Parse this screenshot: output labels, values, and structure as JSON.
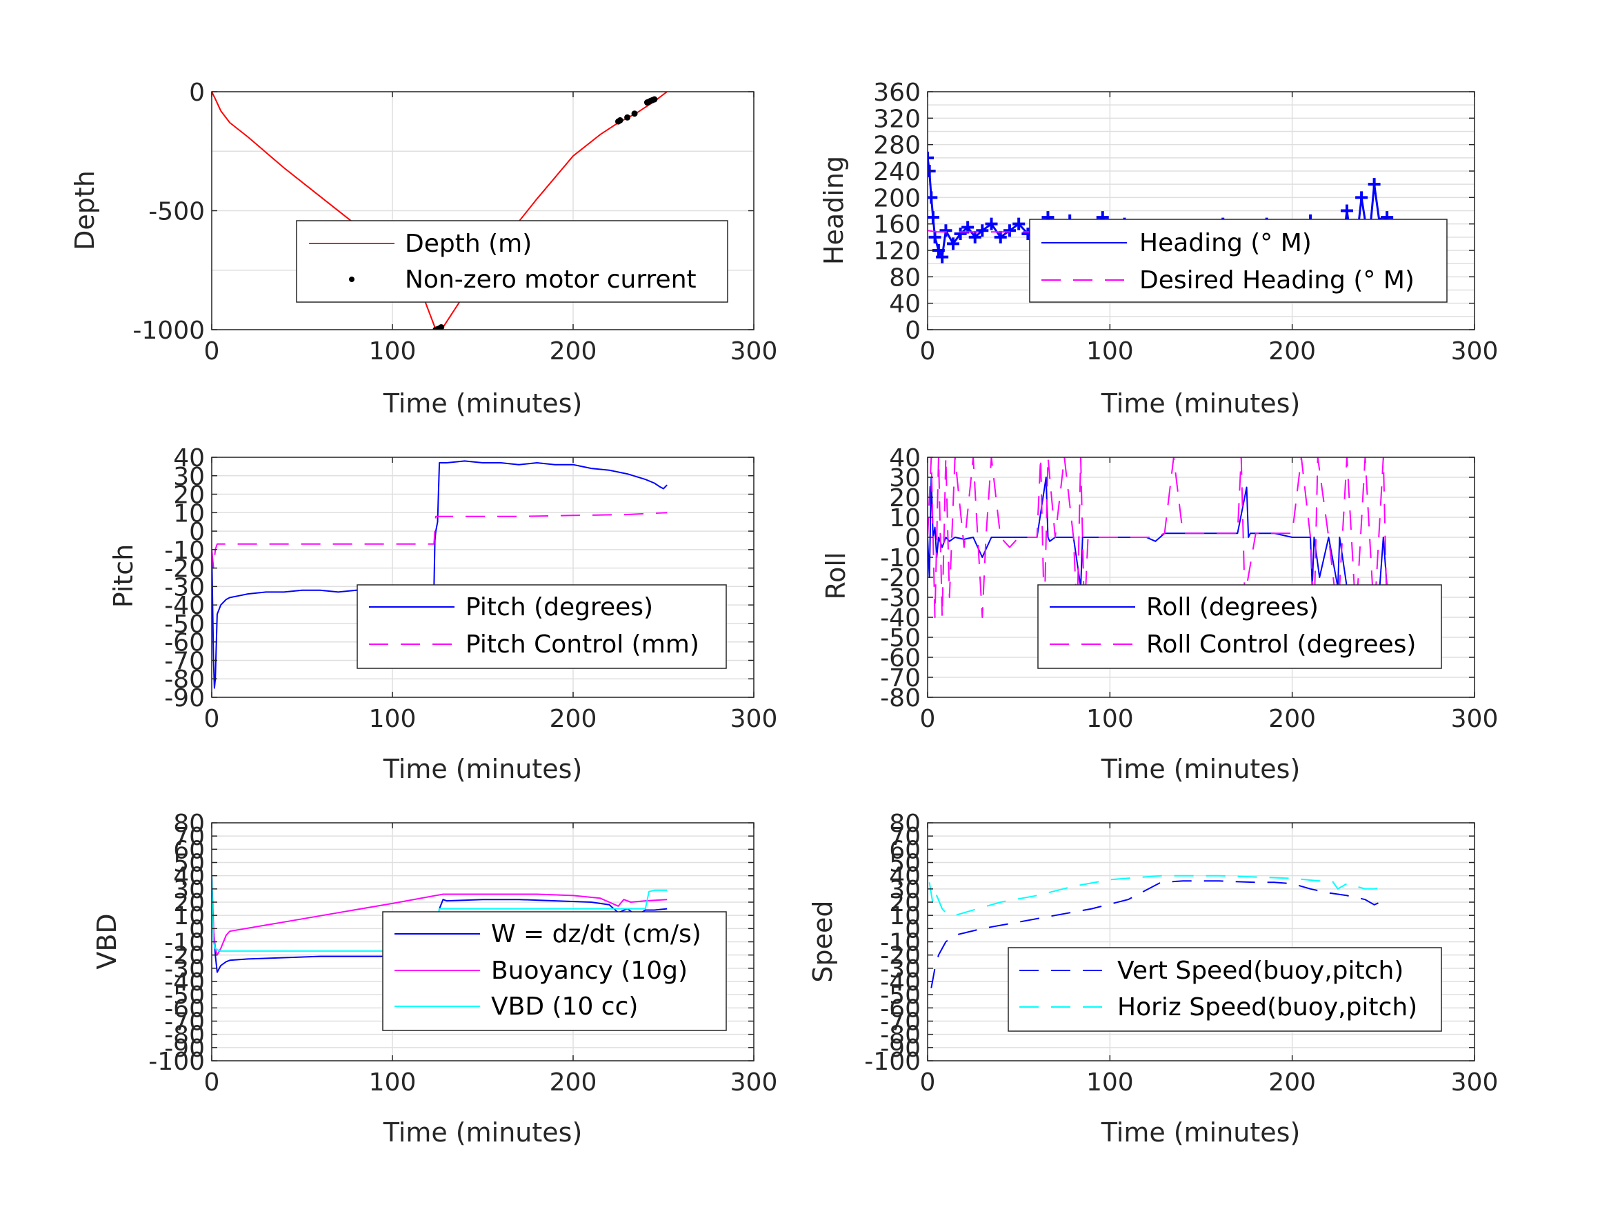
{
  "chart_data": [
    {
      "id": "depth",
      "type": "line",
      "xlabel": "Time (minutes)",
      "ylabel": "Depth",
      "xlim": [
        0,
        300
      ],
      "ylim": [
        -1000,
        0
      ],
      "xticks": [
        0,
        100,
        200,
        300
      ],
      "yticks": [
        -1000,
        -500,
        0
      ],
      "ygrid": [
        -1000,
        -750,
        -500,
        -250,
        0
      ],
      "grid": true,
      "legend": "center-right",
      "series": [
        {
          "name": "Depth (m)",
          "color": "#ff0000",
          "style": "solid",
          "x": [
            0,
            2,
            5,
            10,
            20,
            40,
            60,
            80,
            100,
            115,
            124,
            128,
            140,
            160,
            180,
            200,
            215,
            225,
            235,
            245,
            252
          ],
          "y": [
            0,
            -30,
            -80,
            -130,
            -190,
            -320,
            -440,
            -560,
            -700,
            -820,
            -1000,
            -990,
            -850,
            -640,
            -450,
            -270,
            -180,
            -130,
            -90,
            -40,
            0
          ]
        },
        {
          "name": "Non-zero motor current",
          "color": "#000000",
          "style": "marker",
          "x": [
            124,
            125,
            126,
            127,
            225,
            226,
            230,
            234,
            241,
            242,
            243,
            244,
            245
          ],
          "y": [
            -1000,
            -998,
            -995,
            -990,
            -125,
            -120,
            -108,
            -92,
            -45,
            -42,
            -38,
            -35,
            -32
          ]
        }
      ]
    },
    {
      "id": "heading",
      "type": "line",
      "xlabel": "Time (minutes)",
      "ylabel": "Heading",
      "xlim": [
        0,
        300
      ],
      "ylim": [
        0,
        360
      ],
      "xticks": [
        0,
        100,
        200,
        300
      ],
      "yticks": [
        0,
        40,
        80,
        120,
        160,
        200,
        240,
        280,
        320,
        360
      ],
      "ygrid": [
        0,
        20,
        40,
        60,
        80,
        100,
        120,
        140,
        160,
        180,
        200,
        220,
        240,
        260,
        280,
        300,
        320,
        340,
        360
      ],
      "grid": true,
      "legend": "center-right",
      "series": [
        {
          "name": "Heading (° M)",
          "color": "#0000ff",
          "style": "plus",
          "x": [
            0,
            1,
            2,
            3,
            4,
            6,
            8,
            10,
            14,
            18,
            22,
            26,
            30,
            35,
            40,
            45,
            50,
            55,
            60,
            66,
            72,
            78,
            84,
            90,
            96,
            102,
            108,
            114,
            120,
            126,
            132,
            138,
            144,
            150,
            156,
            162,
            168,
            174,
            180,
            186,
            192,
            198,
            204,
            210,
            216,
            222,
            226,
            230,
            234,
            238,
            242,
            245,
            248,
            252
          ],
          "y": [
            260,
            240,
            200,
            170,
            140,
            120,
            110,
            150,
            130,
            145,
            155,
            140,
            150,
            160,
            140,
            150,
            160,
            145,
            135,
            170,
            140,
            165,
            130,
            150,
            170,
            140,
            160,
            150,
            145,
            155,
            150,
            140,
            130,
            145,
            120,
            160,
            140,
            125,
            150,
            160,
            130,
            150,
            120,
            165,
            140,
            150,
            90,
            180,
            100,
            200,
            130,
            220,
            160,
            170
          ]
        },
        {
          "name": "Desired Heading (° M)",
          "color": "#ff00ff",
          "style": "dashed",
          "x": [
            0,
            5,
            10,
            50,
            100,
            150,
            200,
            230,
            252
          ],
          "y": [
            150,
            148,
            148,
            148,
            148,
            148,
            148,
            148,
            148
          ]
        }
      ]
    },
    {
      "id": "pitch",
      "type": "line",
      "xlabel": "Time (minutes)",
      "ylabel": "Pitch",
      "xlim": [
        0,
        300
      ],
      "ylim": [
        -90,
        40
      ],
      "xticks": [
        0,
        100,
        200,
        300
      ],
      "yticks": [
        -90,
        -80,
        -70,
        -60,
        -50,
        -40,
        -30,
        -20,
        -10,
        0,
        10,
        20,
        30,
        40
      ],
      "ygrid": [
        -90,
        -80,
        -70,
        -60,
        -50,
        -40,
        -30,
        -20,
        -10,
        0,
        10,
        20,
        30,
        40
      ],
      "grid": true,
      "legend": "center-right",
      "series": [
        {
          "name": "Pitch (degrees)",
          "color": "#0000ff",
          "style": "solid",
          "x": [
            0,
            0.5,
            1,
            1.5,
            2,
            3,
            5,
            8,
            10,
            15,
            20,
            30,
            40,
            50,
            60,
            70,
            80,
            90,
            100,
            110,
            123,
            123.5,
            124,
            125,
            126,
            130,
            140,
            150,
            160,
            170,
            180,
            190,
            200,
            205,
            210,
            220,
            230,
            240,
            245,
            248,
            250,
            252
          ],
          "y": [
            -10,
            -40,
            -70,
            -85,
            -80,
            -45,
            -40,
            -37,
            -36,
            -35,
            -34,
            -33,
            -33,
            -32,
            -32,
            -33,
            -32,
            -32,
            -33,
            -32,
            -30,
            -5,
            0,
            5,
            37,
            37,
            38,
            37,
            37,
            36,
            37,
            36,
            36,
            35,
            34,
            33,
            31,
            28,
            26,
            24,
            23,
            25
          ]
        },
        {
          "name": "Pitch Control (mm)",
          "color": "#ff00ff",
          "style": "dashed",
          "x": [
            0,
            1,
            2,
            3,
            10,
            30,
            60,
            90,
            110,
            123,
            124,
            126,
            140,
            170,
            200,
            230,
            252
          ],
          "y": [
            -10,
            -20,
            -10,
            -7,
            -7,
            -7,
            -7,
            -7,
            -7,
            -7,
            8,
            8,
            8,
            8,
            8.5,
            9,
            10
          ]
        }
      ]
    },
    {
      "id": "roll",
      "type": "line",
      "xlabel": "Time (minutes)",
      "ylabel": "Roll",
      "xlim": [
        0,
        300
      ],
      "ylim": [
        -80,
        40
      ],
      "xticks": [
        0,
        100,
        200,
        300
      ],
      "yticks": [
        -80,
        -70,
        -60,
        -50,
        -40,
        -30,
        -20,
        -10,
        0,
        10,
        20,
        30,
        40
      ],
      "ygrid": [
        -80,
        -70,
        -60,
        -50,
        -40,
        -30,
        -20,
        -10,
        0,
        10,
        20,
        30,
        40
      ],
      "grid": true,
      "legend": "center-right",
      "series": [
        {
          "name": "Roll (degrees)",
          "color": "#0000ff",
          "style": "solid",
          "x": [
            0,
            1,
            2,
            3,
            4,
            5,
            6,
            8,
            10,
            12,
            15,
            20,
            25,
            30,
            35,
            40,
            50,
            60,
            65,
            66,
            67,
            70,
            80,
            84,
            85,
            86,
            90,
            100,
            110,
            120,
            125,
            130,
            140,
            150,
            160,
            170,
            175,
            176,
            177,
            180,
            190,
            200,
            210,
            211,
            212,
            215,
            220,
            225,
            226,
            230,
            235,
            240,
            245,
            248,
            250,
            252
          ],
          "y": [
            0,
            -20,
            30,
            0,
            5,
            -10,
            0,
            -5,
            0,
            -2,
            0,
            -1,
            0,
            -10,
            0,
            0,
            0,
            0,
            30,
            0,
            -2,
            0,
            0,
            -25,
            0,
            0,
            0,
            0,
            0,
            0,
            -2,
            2,
            2,
            2,
            2,
            2,
            25,
            0,
            2,
            2,
            2,
            0,
            0,
            -25,
            0,
            -20,
            0,
            -25,
            0,
            -25,
            -25,
            -25,
            -25,
            -25,
            0,
            -25
          ]
        },
        {
          "name": "Roll Control (degrees)",
          "color": "#ff00ff",
          "style": "dashed",
          "x": [
            0,
            2,
            3,
            4,
            6,
            8,
            10,
            12,
            15,
            20,
            25,
            30,
            32,
            35,
            40,
            45,
            50,
            60,
            62,
            64,
            66,
            70,
            75,
            80,
            82,
            84,
            86,
            88,
            90,
            100,
            110,
            120,
            125,
            130,
            135,
            140,
            150,
            160,
            170,
            172,
            174,
            180,
            190,
            200,
            205,
            210,
            212,
            214,
            220,
            225,
            230,
            235,
            240,
            245,
            250,
            252
          ],
          "y": [
            0,
            40,
            0,
            -40,
            40,
            -40,
            40,
            -30,
            40,
            -5,
            40,
            -40,
            0,
            40,
            0,
            -5,
            0,
            0,
            40,
            -40,
            40,
            0,
            40,
            0,
            -40,
            40,
            -40,
            0,
            0,
            0,
            0,
            0,
            0,
            2,
            40,
            2,
            2,
            2,
            2,
            40,
            -30,
            2,
            2,
            2,
            40,
            0,
            -40,
            40,
            0,
            -40,
            40,
            -40,
            40,
            -40,
            40,
            -40
          ]
        }
      ]
    },
    {
      "id": "vbd",
      "type": "line",
      "xlabel": "Time (minutes)",
      "ylabel": "VBD",
      "xlim": [
        0,
        300
      ],
      "ylim": [
        -100,
        80
      ],
      "xticks": [
        0,
        100,
        200,
        300
      ],
      "yticks": [
        -100,
        -90,
        -80,
        -70,
        -60,
        -50,
        -40,
        -30,
        -20,
        -10,
        0,
        10,
        20,
        30,
        40,
        50,
        60,
        70,
        80
      ],
      "ytick_labels_shown": [
        "-100",
        "80"
      ],
      "ygrid": [
        -100,
        -90,
        -80,
        -70,
        -60,
        -50,
        -40,
        -30,
        -20,
        -10,
        0,
        10,
        20,
        30,
        40,
        50,
        60,
        70,
        80
      ],
      "grid": true,
      "legend": "center-right",
      "series": [
        {
          "name": "W = dz/dt (cm/s)",
          "color": "#0000ff",
          "style": "solid",
          "x": [
            0,
            1,
            2,
            3,
            5,
            8,
            10,
            20,
            40,
            60,
            80,
            100,
            110,
            122,
            123,
            124,
            126,
            128,
            130,
            150,
            170,
            190,
            210,
            220,
            225,
            230,
            235,
            240,
            245,
            252
          ],
          "y": [
            40,
            0,
            -20,
            -33,
            -28,
            -25,
            -24,
            -23,
            -22,
            -21,
            -21,
            -21,
            -20,
            -20,
            -10,
            0,
            15,
            22,
            21,
            22,
            22,
            21,
            20,
            18,
            12,
            15,
            10,
            14,
            14,
            15
          ]
        },
        {
          "name": "Buoyancy (10g)",
          "color": "#ff00ff",
          "style": "solid",
          "x": [
            0,
            1,
            2,
            3,
            5,
            8,
            10,
            40,
            70,
            100,
            128,
            150,
            180,
            200,
            215,
            220,
            225,
            228,
            232,
            240,
            252
          ],
          "y": [
            30,
            0,
            -15,
            -20,
            -15,
            -5,
            -2,
            5,
            12,
            19,
            26,
            26,
            26,
            25,
            23,
            20,
            17,
            22,
            20,
            21,
            22
          ]
        },
        {
          "name": "VBD (10 cc)",
          "color": "#00ffff",
          "style": "solid",
          "x": [
            0,
            1,
            2,
            3,
            5,
            10,
            50,
            100,
            123,
            124,
            126,
            140,
            180,
            220,
            230,
            240,
            242,
            245,
            252
          ],
          "y": [
            40,
            -10,
            -15,
            -16,
            -17,
            -17,
            -17,
            -17,
            -17,
            0,
            15,
            15,
            15,
            15,
            15,
            15,
            28,
            29,
            29
          ]
        }
      ]
    },
    {
      "id": "speed",
      "type": "line",
      "xlabel": "Time (minutes)",
      "ylabel": "Speed",
      "xlim": [
        0,
        300
      ],
      "ylim": [
        -100,
        80
      ],
      "xticks": [
        0,
        100,
        200,
        300
      ],
      "yticks": [
        -100,
        -90,
        -80,
        -70,
        -60,
        -50,
        -40,
        -30,
        -20,
        -10,
        0,
        10,
        20,
        30,
        40,
        50,
        60,
        70,
        80
      ],
      "ytick_labels_shown": [
        "-100",
        "80"
      ],
      "ygrid": [
        -100,
        -90,
        -80,
        -70,
        -60,
        -50,
        -40,
        -30,
        -20,
        -10,
        0,
        10,
        20,
        30,
        40,
        50,
        60,
        70,
        80
      ],
      "grid": true,
      "legend": "center-right",
      "series": [
        {
          "name": "Vert Speed(buoy,pitch)",
          "color": "#0000ff",
          "style": "dashed",
          "x": [
            2,
            4,
            6,
            8,
            10,
            15,
            30,
            50,
            70,
            90,
            110,
            128,
            140,
            160,
            180,
            190,
            200,
            210,
            220,
            230,
            240,
            245,
            250,
            252
          ],
          "y": [
            -45,
            -30,
            -20,
            -15,
            -10,
            -5,
            0,
            5,
            10,
            15,
            22,
            35,
            36,
            36,
            35,
            35,
            34,
            30,
            27,
            25,
            22,
            18,
            21,
            17
          ]
        },
        {
          "name": "Horiz Speed(buoy,pitch)",
          "color": "#00ffff",
          "style": "dashed",
          "x": [
            1,
            3,
            5,
            8,
            10,
            15,
            20,
            40,
            60,
            80,
            100,
            128,
            140,
            160,
            180,
            200,
            215,
            222,
            225,
            230,
            235,
            240,
            245,
            252
          ],
          "y": [
            35,
            18,
            25,
            15,
            12,
            10,
            12,
            20,
            25,
            32,
            37,
            40,
            40,
            40,
            39,
            38,
            36,
            36,
            30,
            34,
            32,
            30,
            30,
            32
          ]
        }
      ]
    }
  ]
}
